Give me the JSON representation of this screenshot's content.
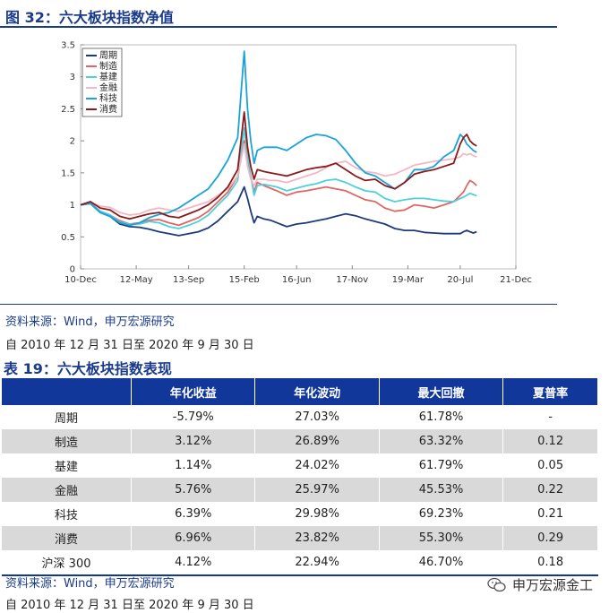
{
  "figure": {
    "title": "图 32：六大板块指数净值",
    "source": "资料来源：Wind，申万宏源研究",
    "period": "自 2010 年 12 月 31 日至 2020 年 9 月 30 日"
  },
  "chart_data": {
    "type": "line",
    "title": "",
    "xlabel": "",
    "ylabel": "",
    "x_tick_labels": [
      "10-Dec",
      "12-May",
      "13-Sep",
      "15-Feb",
      "16-Jun",
      "17-Nov",
      "19-Mar",
      "20-Jul",
      "21-Dec"
    ],
    "x_tick_positions": [
      0,
      17,
      33,
      50,
      66,
      83,
      100,
      116,
      133
    ],
    "ylim": [
      0,
      3.5
    ],
    "y_ticks": [
      0,
      0.5,
      1,
      1.5,
      2,
      2.5,
      3,
      3.5
    ],
    "y_tick_labels": [
      "0",
      "0.5",
      "1",
      "1.5",
      "2",
      "2.5",
      "3",
      "3.5"
    ],
    "xlim": [
      0,
      133
    ],
    "legend_position": "top-left",
    "x": [
      0,
      3,
      6,
      9,
      12,
      15,
      18,
      21,
      24,
      27,
      30,
      33,
      36,
      39,
      42,
      45,
      48,
      50,
      51,
      52,
      53,
      54,
      56,
      58,
      60,
      63,
      66,
      69,
      72,
      75,
      78,
      81,
      84,
      87,
      90,
      93,
      96,
      99,
      102,
      105,
      108,
      111,
      114,
      116,
      117,
      118,
      119,
      120,
      121
    ],
    "series": [
      {
        "name": "周期",
        "color": "#1f3a7a",
        "values": [
          1.0,
          1.02,
          0.88,
          0.82,
          0.7,
          0.66,
          0.65,
          0.62,
          0.58,
          0.55,
          0.52,
          0.55,
          0.58,
          0.64,
          0.75,
          0.9,
          1.05,
          1.28,
          1.1,
          0.9,
          0.72,
          0.82,
          0.78,
          0.76,
          0.72,
          0.66,
          0.7,
          0.72,
          0.75,
          0.78,
          0.82,
          0.86,
          0.83,
          0.78,
          0.74,
          0.7,
          0.63,
          0.6,
          0.6,
          0.57,
          0.56,
          0.55,
          0.55,
          0.55,
          0.58,
          0.6,
          0.58,
          0.56,
          0.58
        ]
      },
      {
        "name": "制造",
        "color": "#e06666",
        "values": [
          1.0,
          1.03,
          0.9,
          0.84,
          0.75,
          0.7,
          0.72,
          0.76,
          0.77,
          0.72,
          0.68,
          0.74,
          0.8,
          0.9,
          1.05,
          1.2,
          1.45,
          2.0,
          1.7,
          1.45,
          1.2,
          1.35,
          1.3,
          1.26,
          1.22,
          1.15,
          1.2,
          1.22,
          1.25,
          1.28,
          1.25,
          1.22,
          1.15,
          1.08,
          1.05,
          0.95,
          0.9,
          0.92,
          1.0,
          0.98,
          0.95,
          1.0,
          1.05,
          1.15,
          1.2,
          1.3,
          1.38,
          1.35,
          1.3
        ]
      },
      {
        "name": "基建",
        "color": "#4fd0d8",
        "values": [
          1.0,
          1.02,
          0.9,
          0.84,
          0.73,
          0.7,
          0.7,
          0.74,
          0.72,
          0.66,
          0.63,
          0.68,
          0.74,
          0.84,
          1.0,
          1.15,
          1.38,
          2.2,
          1.75,
          1.45,
          1.15,
          1.3,
          1.32,
          1.3,
          1.28,
          1.22,
          1.26,
          1.3,
          1.33,
          1.38,
          1.4,
          1.35,
          1.28,
          1.22,
          1.2,
          1.1,
          1.05,
          1.08,
          1.1,
          1.1,
          1.08,
          1.06,
          1.05,
          1.1,
          1.12,
          1.15,
          1.18,
          1.16,
          1.14
        ]
      },
      {
        "name": "金融",
        "color": "#f4b6c2",
        "values": [
          1.0,
          1.04,
          0.98,
          0.96,
          0.88,
          0.84,
          0.86,
          0.92,
          0.95,
          0.92,
          0.9,
          0.95,
          1.0,
          1.05,
          1.15,
          1.25,
          1.45,
          1.95,
          1.6,
          1.4,
          1.3,
          1.4,
          1.4,
          1.38,
          1.38,
          1.35,
          1.4,
          1.45,
          1.5,
          1.58,
          1.65,
          1.68,
          1.58,
          1.52,
          1.5,
          1.45,
          1.48,
          1.55,
          1.62,
          1.65,
          1.68,
          1.7,
          1.72,
          1.75,
          1.8,
          1.78,
          1.8,
          1.77,
          1.75
        ]
      },
      {
        "name": "科技",
        "color": "#1aa3d8",
        "values": [
          1.0,
          1.02,
          0.88,
          0.82,
          0.72,
          0.68,
          0.72,
          0.8,
          0.85,
          0.88,
          0.95,
          1.05,
          1.15,
          1.25,
          1.45,
          1.7,
          2.05,
          3.4,
          2.5,
          2.0,
          1.65,
          1.85,
          1.9,
          1.9,
          1.9,
          1.85,
          1.95,
          2.05,
          2.1,
          2.08,
          2.02,
          1.85,
          1.65,
          1.5,
          1.45,
          1.35,
          1.25,
          1.35,
          1.55,
          1.55,
          1.6,
          1.75,
          1.85,
          2.1,
          2.05,
          1.95,
          1.9,
          1.85,
          1.82
        ]
      },
      {
        "name": "消费",
        "color": "#8b1a1a",
        "values": [
          1.0,
          1.05,
          0.95,
          0.92,
          0.82,
          0.78,
          0.82,
          0.86,
          0.88,
          0.82,
          0.8,
          0.86,
          0.92,
          1.0,
          1.12,
          1.28,
          1.55,
          2.45,
          1.9,
          1.6,
          1.4,
          1.55,
          1.52,
          1.5,
          1.48,
          1.45,
          1.5,
          1.55,
          1.58,
          1.6,
          1.65,
          1.55,
          1.45,
          1.38,
          1.4,
          1.3,
          1.25,
          1.35,
          1.48,
          1.52,
          1.55,
          1.6,
          1.65,
          1.95,
          2.05,
          2.1,
          2.0,
          1.95,
          1.92
        ]
      }
    ]
  },
  "table": {
    "title": "表 19：六大板块指数表现",
    "headers": [
      "",
      "年化收益",
      "年化波动",
      "最大回撤",
      "夏普率"
    ],
    "rows": [
      [
        "周期",
        "-5.79%",
        "27.03%",
        "61.78%",
        "-"
      ],
      [
        "制造",
        "3.12%",
        "26.89%",
        "63.32%",
        "0.12"
      ],
      [
        "基建",
        "1.14%",
        "24.02%",
        "61.79%",
        "0.05"
      ],
      [
        "金融",
        "5.76%",
        "25.97%",
        "45.53%",
        "0.22"
      ],
      [
        "科技",
        "6.39%",
        "29.98%",
        "69.23%",
        "0.21"
      ],
      [
        "消费",
        "6.96%",
        "23.82%",
        "55.30%",
        "0.29"
      ],
      [
        "沪深 300",
        "4.12%",
        "22.94%",
        "46.70%",
        "0.18"
      ]
    ],
    "source": "资料来源：Wind，申万宏源研究",
    "period": "自 2010 年 12 月 31 日至 2020 年 9 月 30 日"
  },
  "watermark": {
    "text": "申万宏源金工",
    "icon": "wechat-icon"
  }
}
